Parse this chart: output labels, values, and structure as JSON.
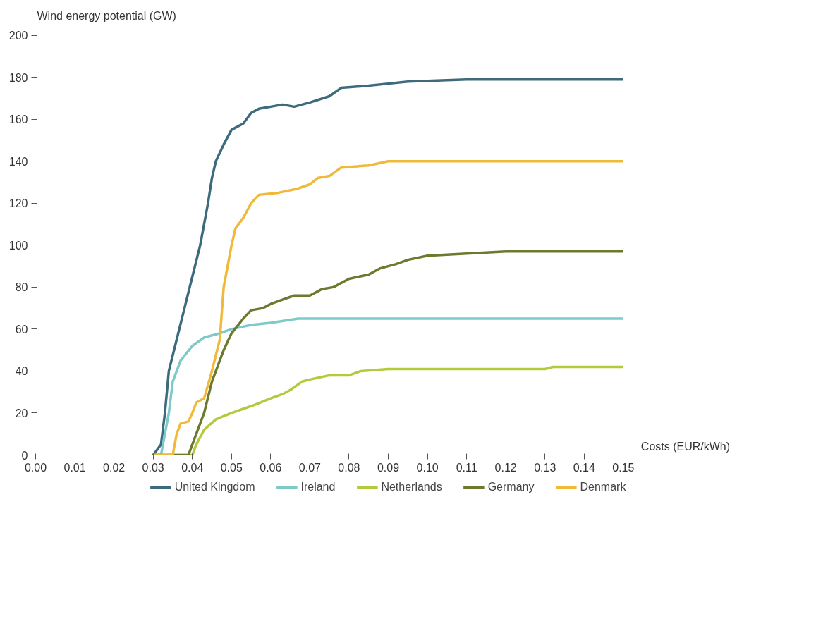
{
  "chart_data": {
    "type": "line",
    "xlabel": "Costs (EUR/kWh)",
    "ylabel": "Wind energy potential (GW)",
    "xlim": [
      0,
      0.15
    ],
    "ylim": [
      0,
      200
    ],
    "xticks": [
      {
        "value": 0,
        "label": "0.00"
      },
      0.01,
      0.02,
      0.03,
      0.04,
      0.05,
      0.06,
      0.07,
      0.08,
      0.09,
      {
        "value": 0.1,
        "label": "0.10"
      },
      0.11,
      0.12,
      0.13,
      0.14,
      0.15
    ],
    "yticks": [
      0,
      20,
      40,
      60,
      80,
      100,
      120,
      140,
      160,
      180,
      200
    ],
    "grid": false,
    "legend": "bottom",
    "marker": "none",
    "line_style": "solid",
    "series": [
      {
        "name": "United Kingdom",
        "color": "#3e6a7d",
        "x": [
          0.03,
          0.032,
          0.033,
          0.034,
          0.036,
          0.038,
          0.04,
          0.042,
          0.044,
          0.045,
          0.046,
          0.048,
          0.05,
          0.053,
          0.055,
          0.057,
          0.06,
          0.063,
          0.066,
          0.07,
          0.075,
          0.078,
          0.085,
          0.09,
          0.095,
          0.11,
          0.15
        ],
        "values": [
          0,
          5,
          20,
          40,
          55,
          70,
          85,
          100,
          120,
          132,
          140,
          148,
          155,
          158,
          163,
          165,
          166,
          167,
          166,
          168,
          171,
          175,
          176,
          177,
          178,
          179,
          179
        ]
      },
      {
        "name": "Ireland",
        "color": "#7ccbc8",
        "x": [
          0.03,
          0.032,
          0.033,
          0.034,
          0.035,
          0.037,
          0.04,
          0.043,
          0.047,
          0.05,
          0.055,
          0.06,
          0.067,
          0.15
        ],
        "values": [
          0,
          0,
          10,
          20,
          35,
          45,
          52,
          56,
          58,
          60,
          62,
          63,
          65,
          65
        ]
      },
      {
        "name": "Netherlands",
        "color": "#b5c93c",
        "x": [
          0.03,
          0.04,
          0.041,
          0.043,
          0.046,
          0.05,
          0.053,
          0.056,
          0.06,
          0.063,
          0.065,
          0.068,
          0.07,
          0.075,
          0.08,
          0.083,
          0.09,
          0.13,
          0.132,
          0.15
        ],
        "values": [
          0,
          0,
          5,
          12,
          17,
          20,
          22,
          24,
          27,
          29,
          31,
          35,
          36,
          38,
          38,
          40,
          41,
          41,
          42,
          42
        ]
      },
      {
        "name": "Germany",
        "color": "#6b7a2e",
        "x": [
          0.03,
          0.039,
          0.04,
          0.041,
          0.043,
          0.045,
          0.048,
          0.05,
          0.053,
          0.055,
          0.058,
          0.06,
          0.063,
          0.066,
          0.07,
          0.073,
          0.076,
          0.08,
          0.085,
          0.088,
          0.092,
          0.095,
          0.1,
          0.11,
          0.12,
          0.15
        ],
        "values": [
          0,
          0,
          5,
          10,
          20,
          35,
          50,
          58,
          65,
          69,
          70,
          72,
          74,
          76,
          76,
          79,
          80,
          84,
          86,
          89,
          91,
          93,
          95,
          96,
          97,
          97
        ]
      },
      {
        "name": "Denmark",
        "color": "#f0b93a",
        "x": [
          0.03,
          0.035,
          0.036,
          0.037,
          0.039,
          0.04,
          0.041,
          0.043,
          0.045,
          0.047,
          0.048,
          0.049,
          0.05,
          0.051,
          0.053,
          0.055,
          0.057,
          0.062,
          0.067,
          0.07,
          0.072,
          0.075,
          0.078,
          0.085,
          0.09,
          0.15
        ],
        "values": [
          0,
          0,
          10,
          15,
          16,
          20,
          25,
          27,
          40,
          55,
          80,
          90,
          100,
          108,
          113,
          120,
          124,
          125,
          127,
          129,
          132,
          133,
          137,
          138,
          140,
          140
        ]
      }
    ]
  }
}
